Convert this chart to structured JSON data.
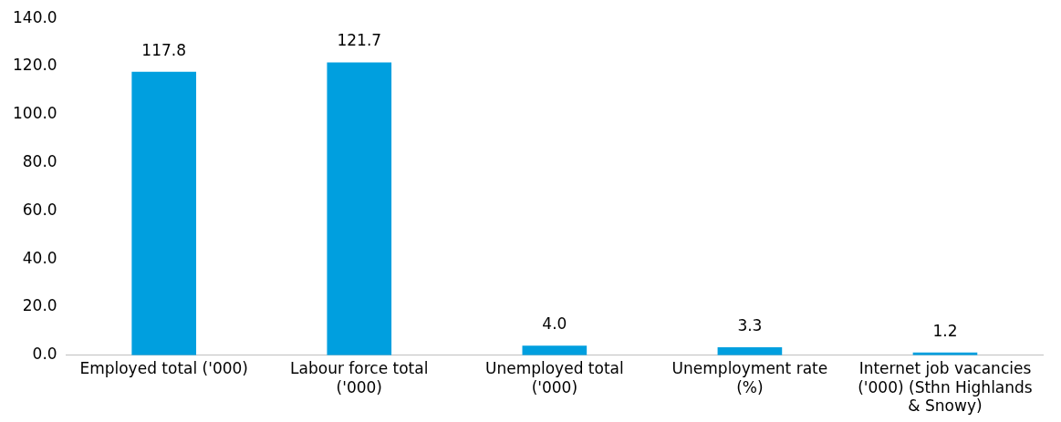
{
  "chart_data": {
    "type": "bar",
    "categories": [
      "Employed total ('000)",
      "Labour force total ('000)",
      "Unemployed total ('000)",
      "Unemployment rate (%)",
      "Internet job vacancies ('000) (Sthn Highlands & Snowy)"
    ],
    "values": [
      117.8,
      121.7,
      4.0,
      3.3,
      1.2
    ],
    "value_labels": [
      "117.8",
      "121.7",
      "4.0",
      "3.3",
      "1.2"
    ],
    "color": "#009fdf",
    "ylim": [
      0,
      140
    ],
    "yticks": [
      {
        "value": 0,
        "label": "0.0"
      },
      {
        "value": 20,
        "label": "20.0"
      },
      {
        "value": 40,
        "label": "40.0"
      },
      {
        "value": 60,
        "label": "60.0"
      },
      {
        "value": 80,
        "label": "80.0"
      },
      {
        "value": 100,
        "label": "100.0"
      },
      {
        "value": 120,
        "label": "120.0"
      },
      {
        "value": 140,
        "label": "140.0"
      }
    ],
    "grid": false,
    "legend": false
  }
}
